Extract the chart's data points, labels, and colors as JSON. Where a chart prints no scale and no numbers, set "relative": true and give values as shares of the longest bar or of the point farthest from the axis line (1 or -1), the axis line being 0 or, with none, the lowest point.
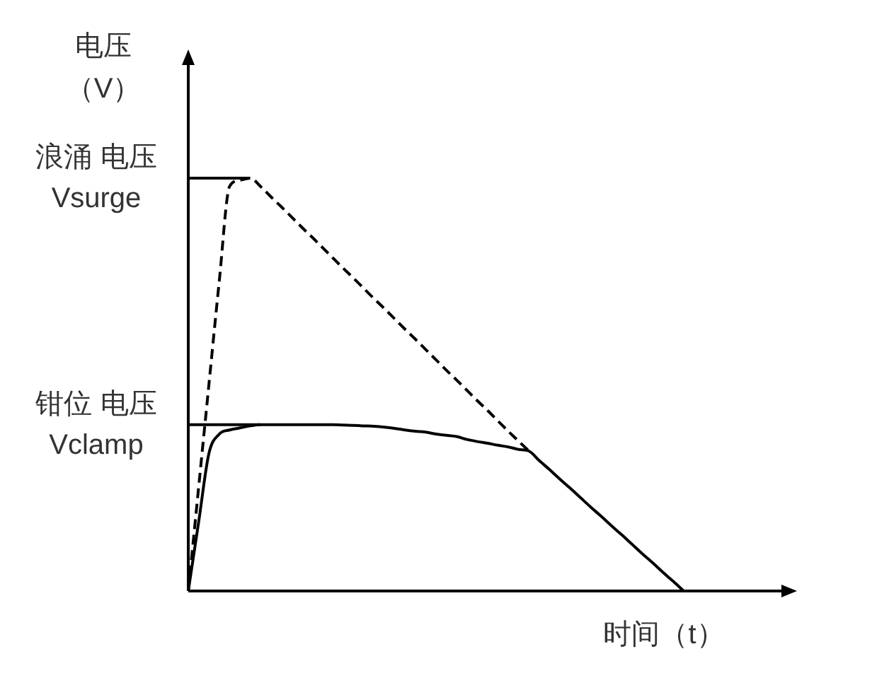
{
  "chart_data": {
    "type": "line",
    "relative": true,
    "ylabel": "电压（V）",
    "xlabel": "时间（t）",
    "categories": [
      null,
      null,
      null,
      null,
      null,
      null,
      null,
      null,
      null,
      null,
      null,
      null,
      null,
      null,
      null,
      null,
      null,
      null,
      null,
      null,
      null,
      null,
      null,
      null,
      null,
      null,
      null,
      null,
      null,
      null,
      null,
      null,
      null,
      null,
      null,
      null,
      null,
      null,
      null,
      null,
      null,
      null,
      null,
      null,
      null,
      null,
      null,
      null,
      null
    ],
    "series": [
      {
        "color": "#000000",
        "line_style": "dashed",
        "values": [
          0,
          0.25,
          0.5,
          0.75,
          0.98,
          0.995,
          1,
          0.98,
          0.955,
          0.931,
          0.906,
          0.881,
          0.857,
          0.832,
          0.807,
          0.782,
          0.758,
          0.733,
          0.708,
          0.684,
          0.659,
          0.634,
          0.61,
          0.585,
          0.56,
          0.535,
          0.511,
          0.486,
          0.461,
          0.437,
          0.412,
          0.387,
          0.363,
          0.339,
          null,
          null,
          null,
          null,
          null,
          null,
          null,
          null,
          null,
          null,
          null,
          null,
          null,
          null,
          null
        ]
      },
      {
        "color": "#000000",
        "values": [
          0,
          0.166,
          0.333,
          0.38,
          0.39,
          0.395,
          0.4,
          0.403,
          0.403,
          0.403,
          0.403,
          0.403,
          0.403,
          0.403,
          0.403,
          0.402,
          0.401,
          0.4,
          0.399,
          0.397,
          0.394,
          0.39,
          0.387,
          0.385,
          0.38,
          0.377,
          0.374,
          0.367,
          0.362,
          0.358,
          0.353,
          0.349,
          0.343,
          0.339,
          0.316,
          0.294,
          0.271,
          0.249,
          0.226,
          0.203,
          0.181,
          0.158,
          0.136,
          0.113,
          0.09,
          0.068,
          0.045,
          0.023,
          0
        ]
      }
    ],
    "ref_lines": [
      {
        "axis": "y",
        "value": 1,
        "label": "浪涌 电压\nVsurge"
      },
      {
        "axis": "y",
        "value": 0.403,
        "label": "钳位 电压\nVclamp"
      }
    ]
  }
}
